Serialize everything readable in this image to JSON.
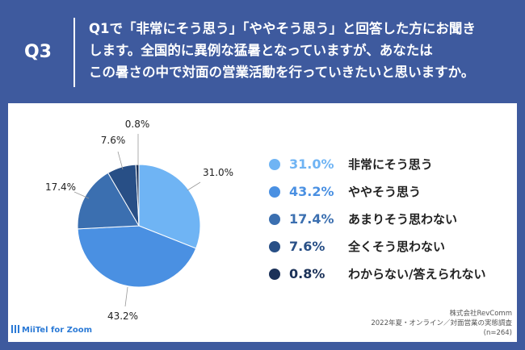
{
  "header": {
    "badge": "Q3",
    "question_lines": [
      "Q1で「非常にそう思う」「ややそう思う」と回答した方にお聞き",
      "します。全国的に異例な猛暑となっていますが、あなたは",
      "この暑さの中で対面の営業活動を行っていきたいと思いますか。"
    ]
  },
  "chart_data": {
    "type": "pie",
    "categories": [
      "非常にそう思う",
      "ややそう思う",
      "あまりそう思わない",
      "全くそう思わない",
      "わからない/答えられない"
    ],
    "values": [
      31.0,
      43.2,
      17.4,
      7.6,
      0.8
    ],
    "value_labels": [
      "31.0%",
      "43.2%",
      "17.4%",
      "7.6%",
      "0.8%"
    ],
    "colors": [
      "#6fb4f4",
      "#4a90e2",
      "#3b6fb0",
      "#284f86",
      "#1b3158"
    ],
    "start_angle_deg": 0,
    "direction": "clockwise",
    "legend_position": "right"
  },
  "footer": {
    "logo_text": "MiiTel for Zoom",
    "credit_lines": [
      "株式会社RevComm",
      "2022年夏・オンライン／対面営業の実態調査",
      "(n=264)"
    ]
  }
}
